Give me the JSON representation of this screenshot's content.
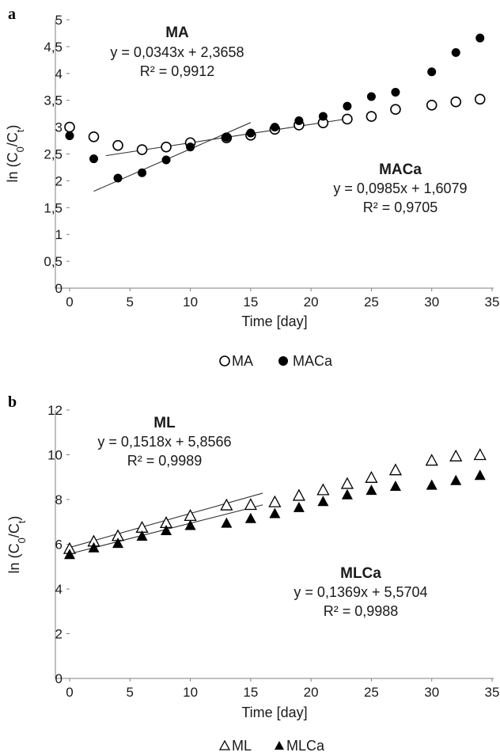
{
  "chart_data": [
    {
      "panel": "a",
      "type": "scatter",
      "xlabel": "Time [day]",
      "ylabel_main": "ln (C",
      "ylabel_sub1": "0",
      "ylabel_mid": "/C",
      "ylabel_sub2": "t",
      "ylabel_end": ")",
      "xlim": [
        0,
        35
      ],
      "ylim": [
        0,
        5
      ],
      "xticks": [
        "0",
        "5",
        "10",
        "15",
        "20",
        "25",
        "30",
        "35"
      ],
      "yticks": [
        "0",
        "0,5",
        "1",
        "1,5",
        "2",
        "2,5",
        "3",
        "3,5",
        "4",
        "4,5",
        "5"
      ],
      "series": [
        {
          "name": "MA",
          "marker": "circle-open",
          "x": [
            0,
            2,
            4,
            6,
            8,
            10,
            13,
            15,
            17,
            19,
            21,
            23,
            25,
            27,
            30,
            32,
            34
          ],
          "y": [
            3.0,
            2.82,
            2.66,
            2.58,
            2.63,
            2.71,
            2.8,
            2.85,
            2.96,
            3.04,
            3.08,
            3.15,
            3.2,
            3.33,
            3.41,
            3.47,
            3.52
          ]
        },
        {
          "name": "MACa",
          "marker": "circle-filled",
          "x": [
            0,
            2,
            4,
            6,
            8,
            10,
            13,
            15,
            17,
            19,
            21,
            23,
            25,
            27,
            30,
            32,
            34
          ],
          "y": [
            2.84,
            2.41,
            2.05,
            2.15,
            2.39,
            2.63,
            2.81,
            2.89,
            3.0,
            3.12,
            3.2,
            3.39,
            3.57,
            3.65,
            4.03,
            4.39,
            4.66
          ]
        }
      ],
      "trendlines": [
        {
          "series": "MA",
          "slope": 0.0343,
          "intercept": 2.3658,
          "x_range": [
            3,
            23
          ]
        },
        {
          "series": "MACa",
          "slope": 0.0985,
          "intercept": 1.6079,
          "x_range": [
            2,
            15
          ]
        }
      ],
      "annotations": {
        "ma_title": "MA",
        "ma_eq": "y = 0,0343x + 2,3658",
        "ma_r2": "R² = 0,9912",
        "maca_title": "MACa",
        "maca_eq": "y = 0,0985x + 1,6079",
        "maca_r2": "R² = 0,9705"
      },
      "legend": [
        "MA",
        "MACa"
      ],
      "legend_position": "bottom"
    },
    {
      "panel": "b",
      "type": "scatter",
      "xlabel": "Time [day]",
      "ylabel_main": "ln (C",
      "ylabel_sub1": "0",
      "ylabel_mid": "/C",
      "ylabel_sub2": "t",
      "ylabel_end": ")",
      "xlim": [
        0,
        35
      ],
      "ylim": [
        0,
        12
      ],
      "xticks": [
        "0",
        "5",
        "10",
        "15",
        "20",
        "25",
        "30",
        "35"
      ],
      "yticks": [
        "0",
        "2",
        "4",
        "6",
        "8",
        "10",
        "12"
      ],
      "series": [
        {
          "name": "ML",
          "marker": "triangle-open",
          "x": [
            0,
            2,
            4,
            6,
            8,
            10,
            13,
            15,
            17,
            19,
            21,
            23,
            25,
            27,
            30,
            32,
            34
          ],
          "y": [
            5.8,
            6.13,
            6.38,
            6.75,
            6.96,
            7.28,
            7.75,
            7.77,
            7.89,
            8.18,
            8.43,
            8.71,
            8.98,
            9.32,
            9.75,
            9.94,
            10.0
          ]
        },
        {
          "name": "MLCa",
          "marker": "triangle-filled",
          "x": [
            0,
            2,
            4,
            6,
            8,
            10,
            13,
            15,
            17,
            19,
            21,
            23,
            25,
            27,
            30,
            32,
            34
          ],
          "y": [
            5.55,
            5.85,
            6.05,
            6.37,
            6.62,
            6.85,
            6.95,
            7.16,
            7.38,
            7.65,
            7.92,
            8.22,
            8.42,
            8.6,
            8.65,
            8.86,
            9.09
          ]
        }
      ],
      "trendlines": [
        {
          "series": "ML",
          "slope": 0.1518,
          "intercept": 5.8566,
          "x_range": [
            0,
            16
          ]
        },
        {
          "series": "MLCa",
          "slope": 0.1369,
          "intercept": 5.5704,
          "x_range": [
            0,
            16
          ]
        }
      ],
      "annotations": {
        "ml_title": "ML",
        "ml_eq": "y = 0,1518x + 5,8566",
        "ml_r2": "R² = 0,9989",
        "mlca_title": "MLCa",
        "mlca_eq": "y = 0,1369x + 5,5704",
        "mlca_r2": "R² = 0,9988"
      },
      "legend": [
        "ML",
        "MLCa"
      ],
      "legend_position": "bottom"
    }
  ]
}
